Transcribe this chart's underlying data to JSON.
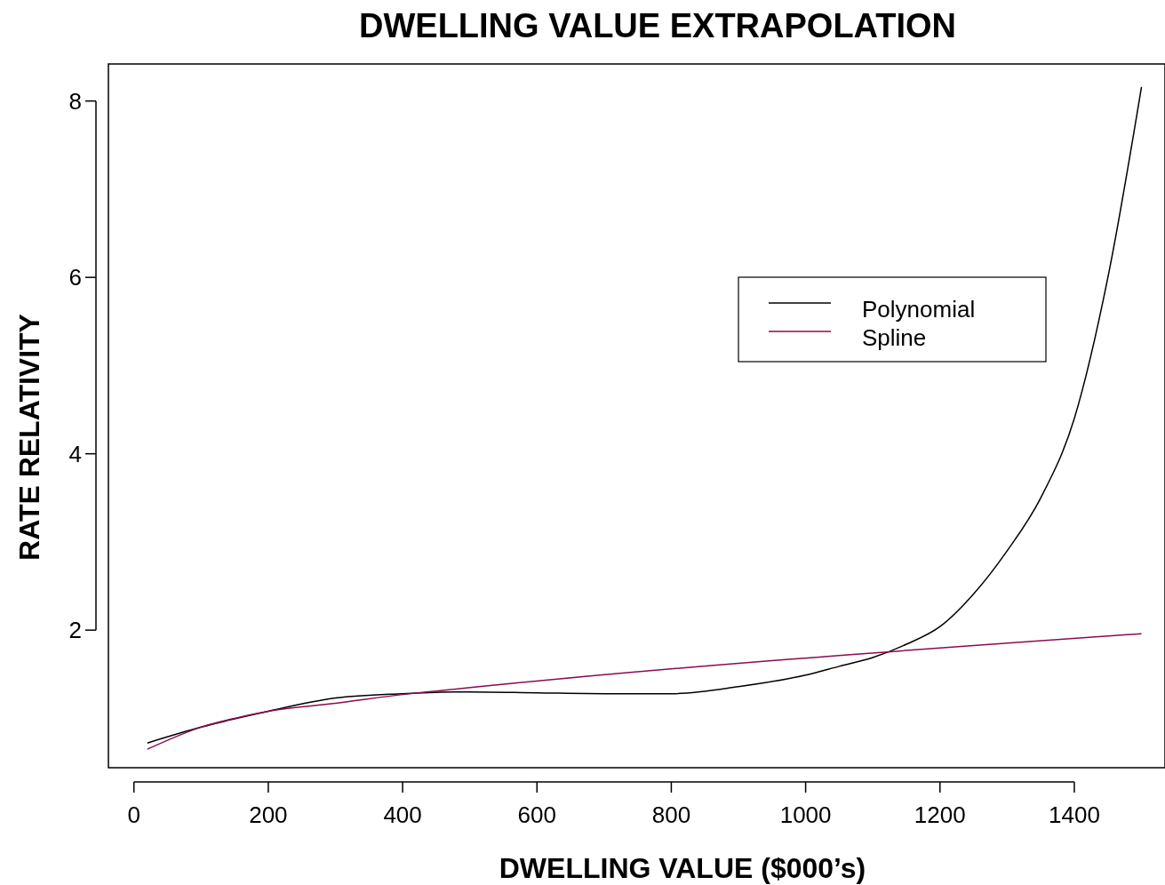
{
  "chart_data": {
    "type": "line",
    "title": "DWELLING VALUE EXTRAPOLATION",
    "xlabel": "DWELLING VALUE ($000’s)",
    "ylabel": "RATE RELATIVITY",
    "xlim": [
      -38,
      1535
    ],
    "ylim": [
      0.44,
      8.42
    ],
    "xticks": [
      0,
      200,
      400,
      600,
      800,
      1000,
      1200,
      1400
    ],
    "yticks": [
      2,
      4,
      6,
      8
    ],
    "legend": "right",
    "grid": false,
    "series": [
      {
        "name": "Polynomial",
        "color": "#000000",
        "x": [
          20,
          100,
          200,
          300,
          400,
          500,
          600,
          700,
          800,
          900,
          1000,
          1050,
          1100,
          1150,
          1200,
          1250,
          1300,
          1350,
          1400,
          1450,
          1500
        ],
        "values": [
          0.72,
          0.9,
          1.08,
          1.23,
          1.28,
          1.3,
          1.29,
          1.28,
          1.28,
          1.36,
          1.49,
          1.59,
          1.69,
          1.84,
          2.04,
          2.41,
          2.9,
          3.5,
          4.4,
          6.0,
          8.16
        ]
      },
      {
        "name": "Spline",
        "color": "#8b0a50",
        "x": [
          20,
          100,
          150,
          200,
          300,
          400,
          450,
          1500
        ],
        "values": [
          0.65,
          0.9,
          1.0,
          1.08,
          1.17,
          1.27,
          1.31,
          1.96
        ]
      }
    ]
  }
}
